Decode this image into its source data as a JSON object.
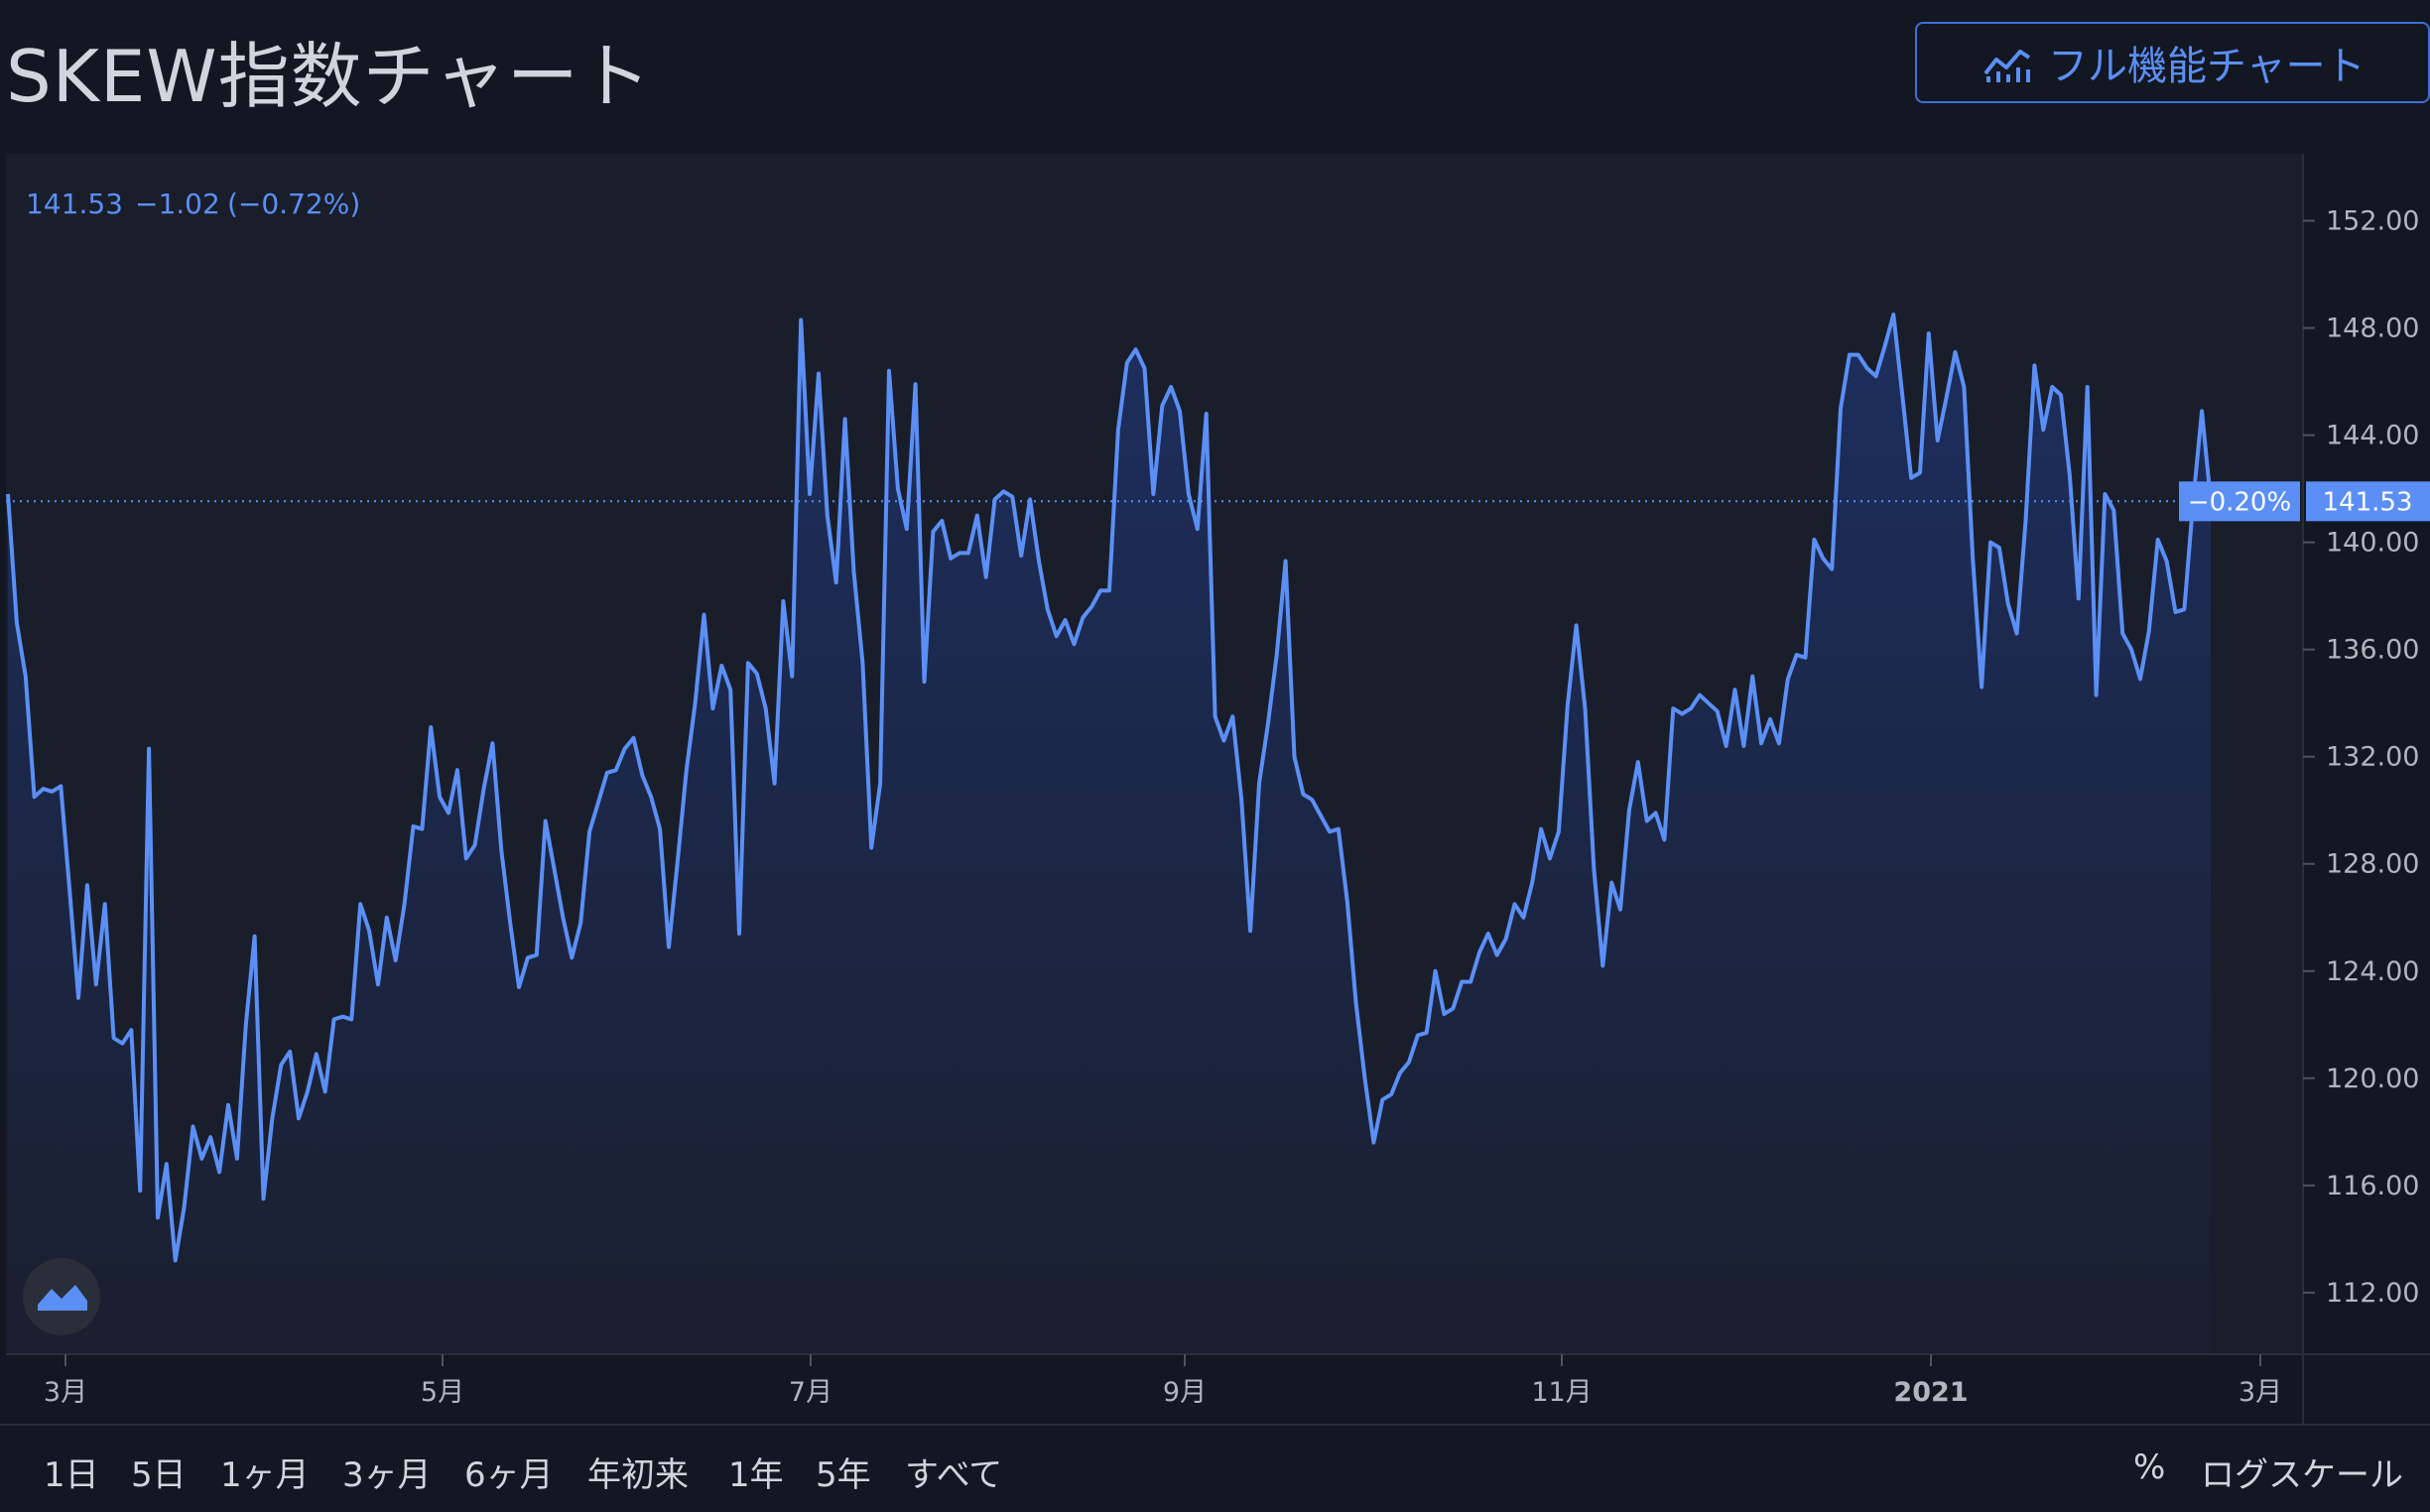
{
  "header": {
    "title": "SKEW指数チャート",
    "full_chart_button": "フル機能チャート"
  },
  "legend": {
    "price": "141.53",
    "change": "−1.02",
    "change_pct": "(−0.72%)"
  },
  "price_marker": {
    "pct": "−0.20%",
    "price": "141.53"
  },
  "timeframes": [
    "1日",
    "5日",
    "1ヶ月",
    "3ヶ月",
    "6ヶ月",
    "年初来",
    "1年",
    "5年",
    "すべて"
  ],
  "scale_controls": {
    "percent": "%",
    "log": "ログスケール"
  },
  "colors": {
    "line": "#5b8ff5",
    "background": "#131722",
    "marker": "#5b8ff5"
  },
  "icons": {
    "full_chart": "chart-line-icon",
    "logo": "tradingview-logo-icon"
  },
  "chart_data": {
    "type": "area",
    "y_ticks": [
      "112.00",
      "116.00",
      "120.00",
      "124.00",
      "128.00",
      "132.00",
      "136.00",
      "140.00",
      "144.00",
      "148.00",
      "152.00"
    ],
    "x_ticks": [
      "3月",
      "5月",
      "7月",
      "9月",
      "11月",
      "2021",
      "3月"
    ],
    "ylim": [
      109.7,
      154.5
    ],
    "last_value": 141.53,
    "values": [
      141.8,
      137,
      135,
      130.5,
      130.8,
      130.7,
      130.9,
      127,
      123,
      127.2,
      123.5,
      126.5,
      121.5,
      121.3,
      121.8,
      115.8,
      132.3,
      114.8,
      116.8,
      113.2,
      115.2,
      118.2,
      117,
      117.8,
      116.5,
      119,
      117,
      122,
      125.3,
      115.5,
      118.5,
      120.5,
      121,
      118.5,
      119.5,
      120.9,
      119.5,
      122.2,
      122.3,
      122.2,
      126.5,
      125.5,
      123.5,
      126,
      124.4,
      126.5,
      129.4,
      129.3,
      133.1,
      130.5,
      129.9,
      131.5,
      128.2,
      128.7,
      130.8,
      132.5,
      128.5,
      125.8,
      123.4,
      124.5,
      124.6,
      129.6,
      127.8,
      126,
      124.5,
      125.8,
      129.2,
      130.3,
      131.4,
      131.5,
      132.3,
      132.7,
      131.3,
      130.5,
      129.3,
      124.9,
      128.1,
      131.5,
      134,
      137.3,
      133.8,
      135.4,
      134.5,
      125.4,
      135.5,
      135.1,
      133.8,
      131,
      137.8,
      135,
      148.3,
      141.8,
      146.3,
      141,
      138.5,
      144.6,
      138.9,
      135.5,
      128.6,
      131,
      146.4,
      142,
      140.5,
      145.9,
      134.8,
      140.4,
      140.8,
      139.4,
      139.6,
      139.6,
      141,
      138.7,
      141.6,
      141.9,
      141.7,
      139.5,
      141.6,
      139.3,
      137.5,
      136.5,
      137.1,
      136.2,
      137.2,
      137.6,
      138.2,
      138.2,
      144.2,
      146.7,
      147.2,
      146.5,
      141.8,
      145.1,
      145.8,
      144.9,
      141.8,
      140.5,
      144.8,
      133.5,
      132.6,
      133.5,
      130.4,
      125.5,
      131,
      133.2,
      135.8,
      139.3,
      132,
      130.6,
      130.4,
      129.8,
      129.2,
      129.3,
      126.6,
      122.8,
      120,
      117.6,
      119.2,
      119.4,
      120.2,
      120.6,
      121.6,
      121.7,
      124,
      122.4,
      122.6,
      123.6,
      123.6,
      124.7,
      125.4,
      124.6,
      125.2,
      126.5,
      126,
      127.3,
      129.3,
      128.2,
      129.2,
      133.9,
      136.9,
      133.8,
      127.8,
      124.2,
      127.3,
      126.3,
      130,
      131.8,
      129.6,
      129.9,
      128.9,
      133.8,
      133.6,
      133.8,
      134.3,
      134,
      133.7,
      132.4,
      134.5,
      132.4,
      135,
      132.5,
      133.4,
      132.5,
      134.9,
      135.8,
      135.7,
      140.1,
      139.4,
      139,
      145,
      147,
      147,
      146.5,
      146.2,
      147.3,
      148.5,
      145.5,
      142.4,
      142.6,
      147.8,
      143.8,
      145.4,
      147.1,
      145.8,
      139.4,
      134.6,
      140,
      139.8,
      137.7,
      136.6,
      140.8,
      146.6,
      144.2,
      145.8,
      145.5,
      142.5,
      137.9,
      145.8,
      134.3,
      141.8,
      141.2,
      136.6,
      136,
      134.9,
      136.7,
      140.1,
      139.3,
      137.4,
      137.5,
      141.5,
      144.9,
      141.53
    ]
  }
}
